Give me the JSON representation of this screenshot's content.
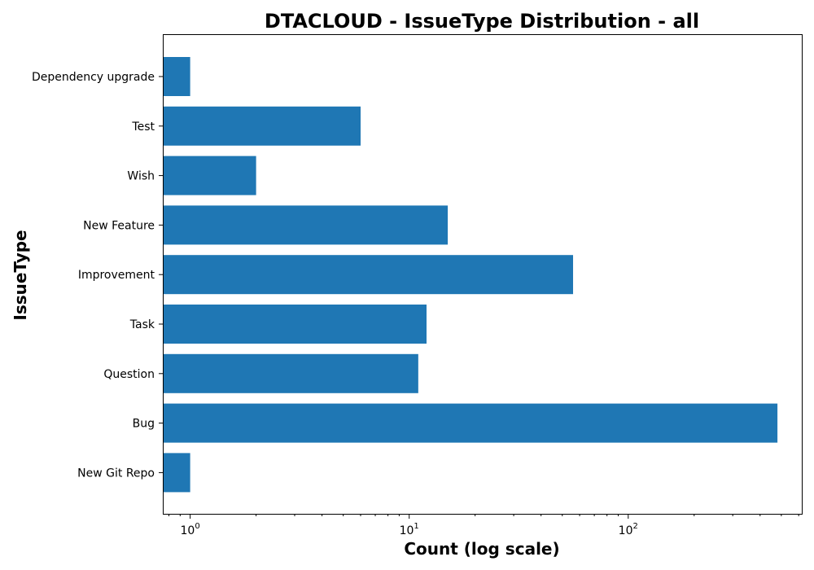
{
  "chart_data": {
    "type": "bar",
    "orientation": "horizontal",
    "title": "DTACLOUD - IssueType Distribution - all",
    "xlabel": "Count (log scale)",
    "ylabel": "IssueType",
    "x_scale": "log",
    "xlim": [
      0.75,
      620
    ],
    "x_major_ticks": [
      {
        "value": 1,
        "base": "10",
        "exp": "0"
      },
      {
        "value": 10,
        "base": "10",
        "exp": "1"
      },
      {
        "value": 100,
        "base": "10",
        "exp": "2"
      }
    ],
    "bar_color": "#1f77b4",
    "categories": [
      "Dependency upgrade",
      "Test",
      "Wish",
      "New Feature",
      "Improvement",
      "Task",
      "Question",
      "Bug",
      "New Git Repo"
    ],
    "values": [
      1,
      6,
      2,
      15,
      56,
      12,
      11,
      480,
      1
    ],
    "grid": false,
    "legend": false
  }
}
